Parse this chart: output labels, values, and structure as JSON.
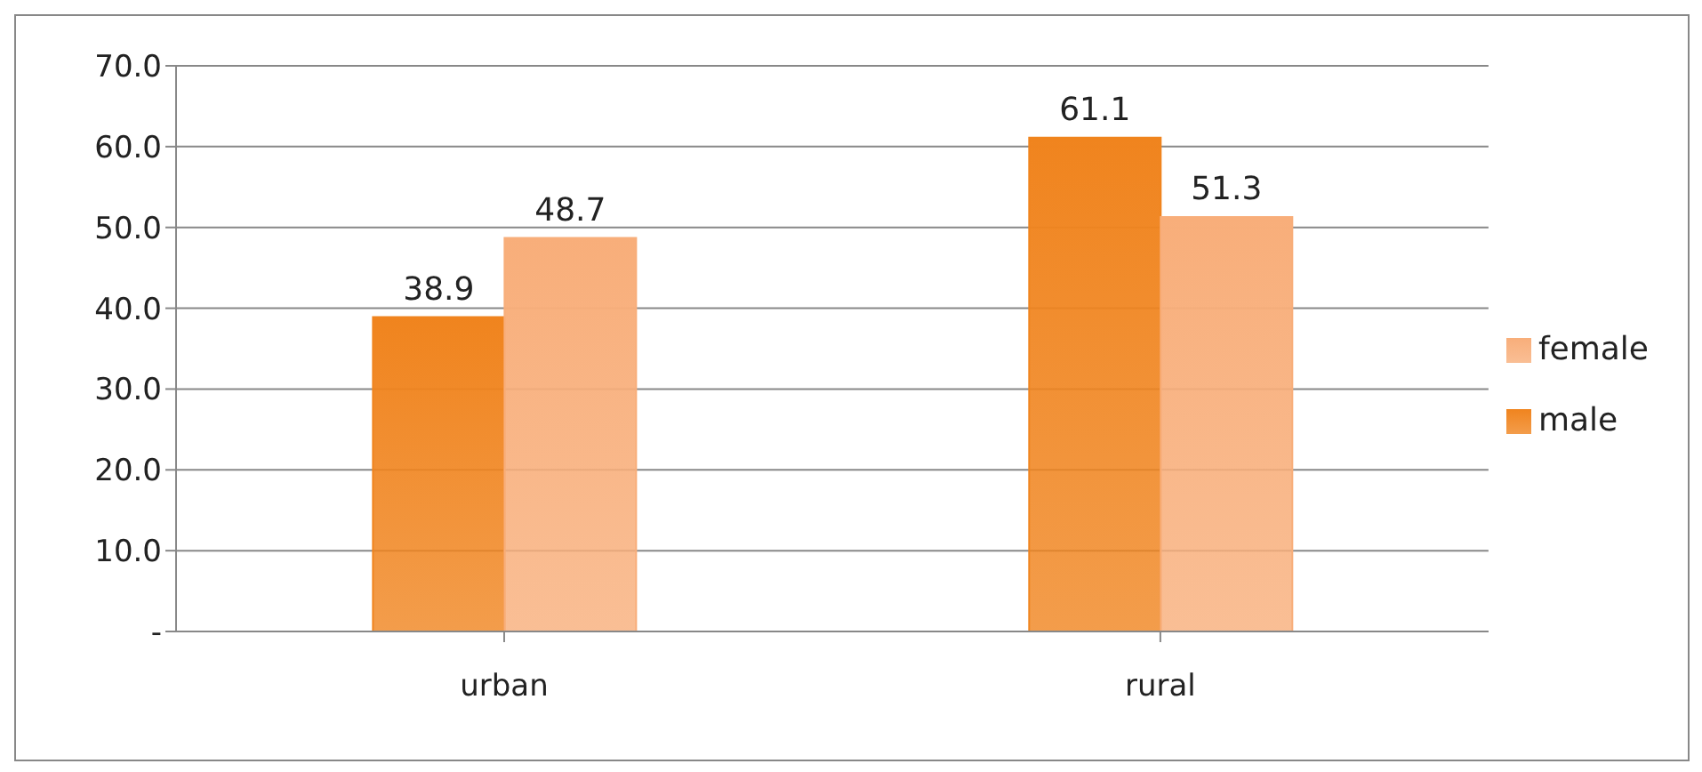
{
  "chart_data": {
    "type": "bar",
    "categories": [
      "urban",
      "rural"
    ],
    "series": [
      {
        "name": "male",
        "color": "#f0841e",
        "values": [
          38.9,
          61.1
        ]
      },
      {
        "name": "female",
        "color": "#f8ae7a",
        "values": [
          48.7,
          51.3
        ]
      }
    ],
    "ylim": [
      0,
      70
    ],
    "yticks": [
      {
        "value": 0,
        "label": "-"
      },
      {
        "value": 10,
        "label": "10.0"
      },
      {
        "value": 20,
        "label": "20.0"
      },
      {
        "value": 30,
        "label": "30.0"
      },
      {
        "value": 40,
        "label": "40.0"
      },
      {
        "value": 50,
        "label": "50.0"
      },
      {
        "value": 60,
        "label": "60.0"
      },
      {
        "value": 70,
        "label": "70.0"
      }
    ],
    "grid": "y",
    "legend": "right",
    "data_labels": true
  }
}
